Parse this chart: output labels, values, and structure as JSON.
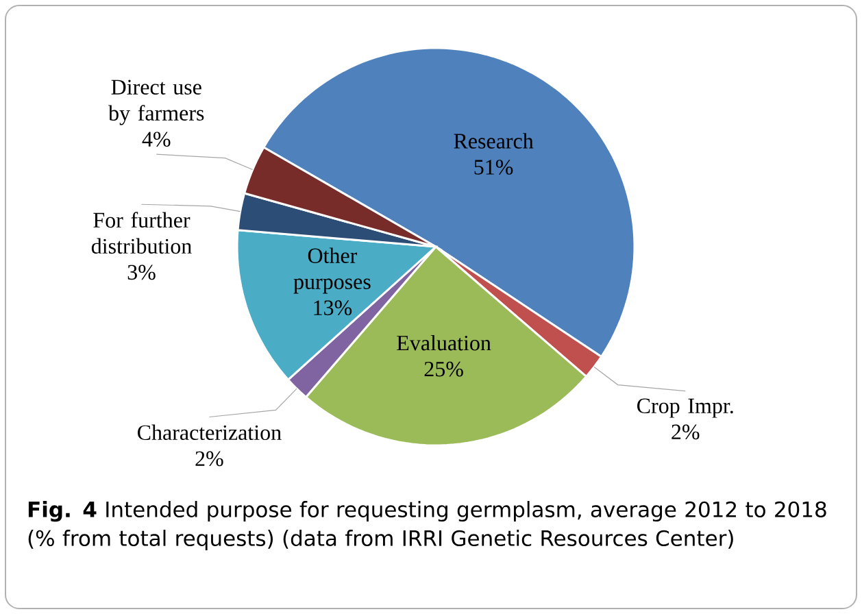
{
  "chart_data": {
    "type": "pie",
    "title": "**Fig. 4** Intended purpose for requesting germplasm, average 2012 to 2018 (% from total requests) (data from IRRI Genetic Resources Center)",
    "categories": [
      "Research",
      "Crop Impr.",
      "Evaluation",
      "Characterization",
      "Other purposes",
      "For further distribution",
      "Direct use by farmers"
    ],
    "values": [
      51,
      2,
      25,
      2,
      13,
      3,
      4
    ],
    "value_labels": [
      "51%",
      "2%",
      "25%",
      "2%",
      "13%",
      "3%",
      "4%"
    ],
    "colors": [
      "#4f81bd",
      "#c0504d",
      "#9bbb59",
      "#8064a2",
      "#4bacc6",
      "#2c4d75",
      "#772c2a"
    ]
  }
}
